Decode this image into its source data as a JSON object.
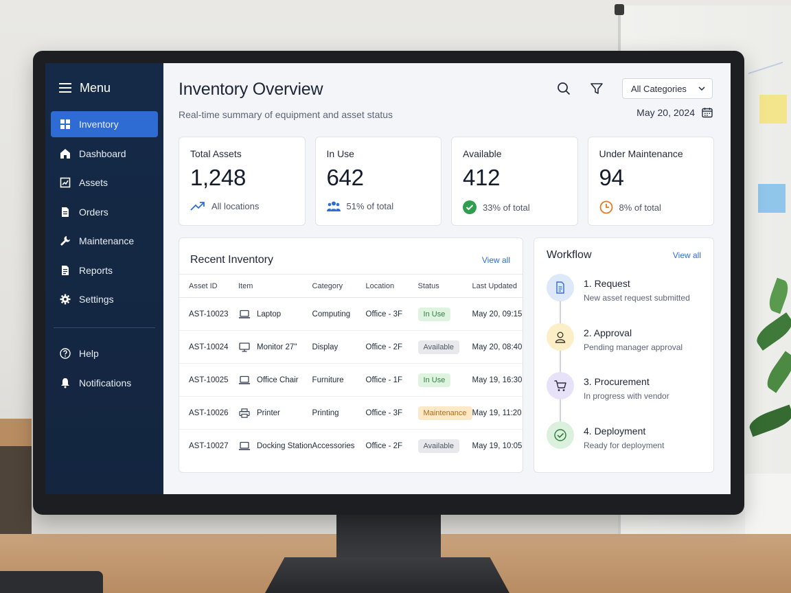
{
  "sidebar": {
    "menu_label": "Menu",
    "items": [
      {
        "label": "Inventory",
        "icon": "grid-icon",
        "active": true
      },
      {
        "label": "Dashboard",
        "icon": "home-icon"
      },
      {
        "label": "Assets",
        "icon": "chart-box-icon"
      },
      {
        "label": "Orders",
        "icon": "document-icon"
      },
      {
        "label": "Maintenance",
        "icon": "wrench-icon"
      },
      {
        "label": "Reports",
        "icon": "report-icon"
      },
      {
        "label": "Settings",
        "icon": "gear-icon"
      }
    ],
    "footer_items": [
      {
        "label": "Help",
        "icon": "help-circle-icon"
      },
      {
        "label": "Notifications",
        "icon": "bell-icon"
      }
    ]
  },
  "header": {
    "title": "Inventory Overview",
    "subtitle": "Real-time summary of equipment and asset status",
    "category_select": "All Categories",
    "date": "May 20, 2024"
  },
  "stats": [
    {
      "label": "Total Assets",
      "value": "1,248",
      "foot": "All locations",
      "icon": "trend-up-icon",
      "color": "#2e6cd3"
    },
    {
      "label": "In Use",
      "value": "642",
      "foot": "51% of total",
      "icon": "users-icon",
      "color": "#2e6cd3"
    },
    {
      "label": "Available",
      "value": "412",
      "foot": "33% of total",
      "icon": "check-circle-icon",
      "color": "#2f9e4f"
    },
    {
      "label": "Under Maintenance",
      "value": "94",
      "foot": "8% of total",
      "icon": "clock-icon",
      "color": "#e07b1f"
    }
  ],
  "inventory": {
    "title": "Recent Inventory",
    "view_all": "View all",
    "columns": [
      "Asset ID",
      "Item",
      "Category",
      "Location",
      "Status",
      "Last Updated"
    ],
    "rows": [
      {
        "id": "AST-10023",
        "item": "Laptop",
        "icon": "laptop-icon",
        "category": "Computing",
        "location": "Office - 3F",
        "status": "In Use",
        "status_kind": "inuse",
        "updated": "May 20, 09:15"
      },
      {
        "id": "AST-10024",
        "item": "Monitor 27\"",
        "icon": "monitor-icon",
        "category": "Display",
        "location": "Office - 2F",
        "status": "Available",
        "status_kind": "avail",
        "updated": "May 20, 08:40"
      },
      {
        "id": "AST-10025",
        "item": "Office Chair",
        "icon": "laptop-icon",
        "category": "Furniture",
        "location": "Office - 1F",
        "status": "In Use",
        "status_kind": "inuse",
        "updated": "May 19, 16:30"
      },
      {
        "id": "AST-10026",
        "item": "Printer",
        "icon": "printer-icon",
        "category": "Printing",
        "location": "Office - 3F",
        "status": "Maintenance",
        "status_kind": "maint",
        "updated": "May 19, 11:20"
      },
      {
        "id": "AST-10027",
        "item": "Docking Station",
        "icon": "laptop-icon",
        "category": "Accessories",
        "location": "Office - 2F",
        "status": "Available",
        "status_kind": "avail",
        "updated": "May 19, 10:05"
      }
    ]
  },
  "workflow": {
    "title": "Workflow",
    "view_all": "View all",
    "steps": [
      {
        "title": "1. Request",
        "desc": "New asset request submitted",
        "icon": "document-icon",
        "bg": "#dde8f8",
        "fg": "#2e6cd3"
      },
      {
        "title": "2. Approval",
        "desc": "Pending manager approval",
        "icon": "person-icon",
        "bg": "#fcefc8",
        "fg": "#5a4a1e"
      },
      {
        "title": "3. Procurement",
        "desc": "In progress with vendor",
        "icon": "cart-icon",
        "bg": "#e8e2f8",
        "fg": "#3d3560"
      },
      {
        "title": "4. Deployment",
        "desc": "Ready for deployment",
        "icon": "check-circle-icon",
        "bg": "#dcf0de",
        "fg": "#2f7d3c"
      }
    ]
  }
}
